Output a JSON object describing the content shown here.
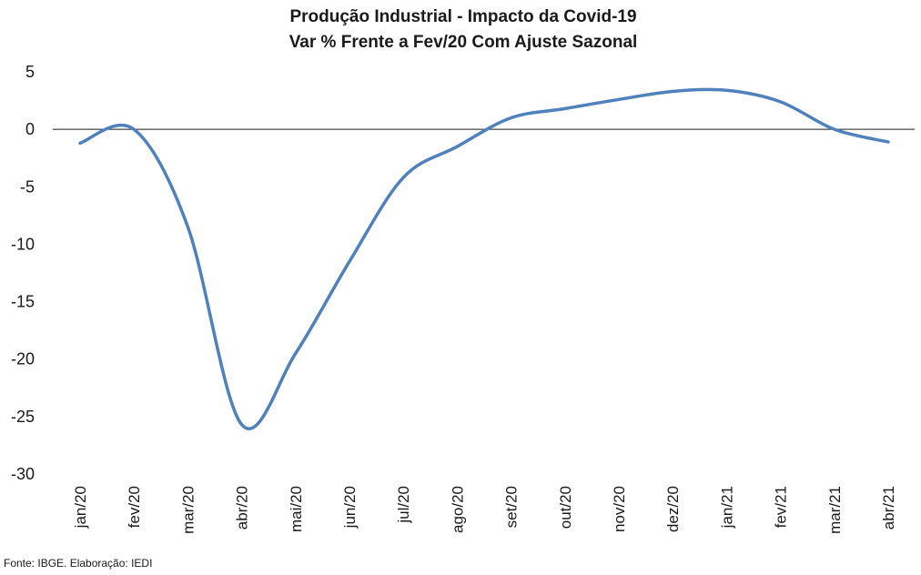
{
  "chart_data": {
    "type": "line",
    "title": "Produção Industrial - Impacto da Covid-19",
    "subtitle": "Var % Frente a Fev/20 Com Ajuste Sazonal",
    "xlabel": "",
    "ylabel": "",
    "ylim": [
      -30,
      5
    ],
    "yticks": [
      "5",
      "0",
      "-5",
      "-10",
      "-15",
      "-20",
      "-25",
      "-30"
    ],
    "categories": [
      "jan/20",
      "fev/20",
      "mar/20",
      "abr/20",
      "mai/20",
      "jun/20",
      "jul/20",
      "ago/20",
      "set/20",
      "out/20",
      "nov/20",
      "dez/20",
      "jan/21",
      "fev/21",
      "mar/21",
      "abr/21"
    ],
    "series": [
      {
        "name": "",
        "color": "#4f81bd",
        "values": [
          -1.2,
          0.0,
          -8.5,
          -25.7,
          -19.5,
          -11.5,
          -4.2,
          -1.5,
          1.0,
          1.8,
          2.6,
          3.3,
          3.4,
          2.4,
          0.0,
          -1.1
        ]
      }
    ],
    "grid": false,
    "legend": "none",
    "source": "Fonte: IBGE. Elaboração: IEDI"
  }
}
